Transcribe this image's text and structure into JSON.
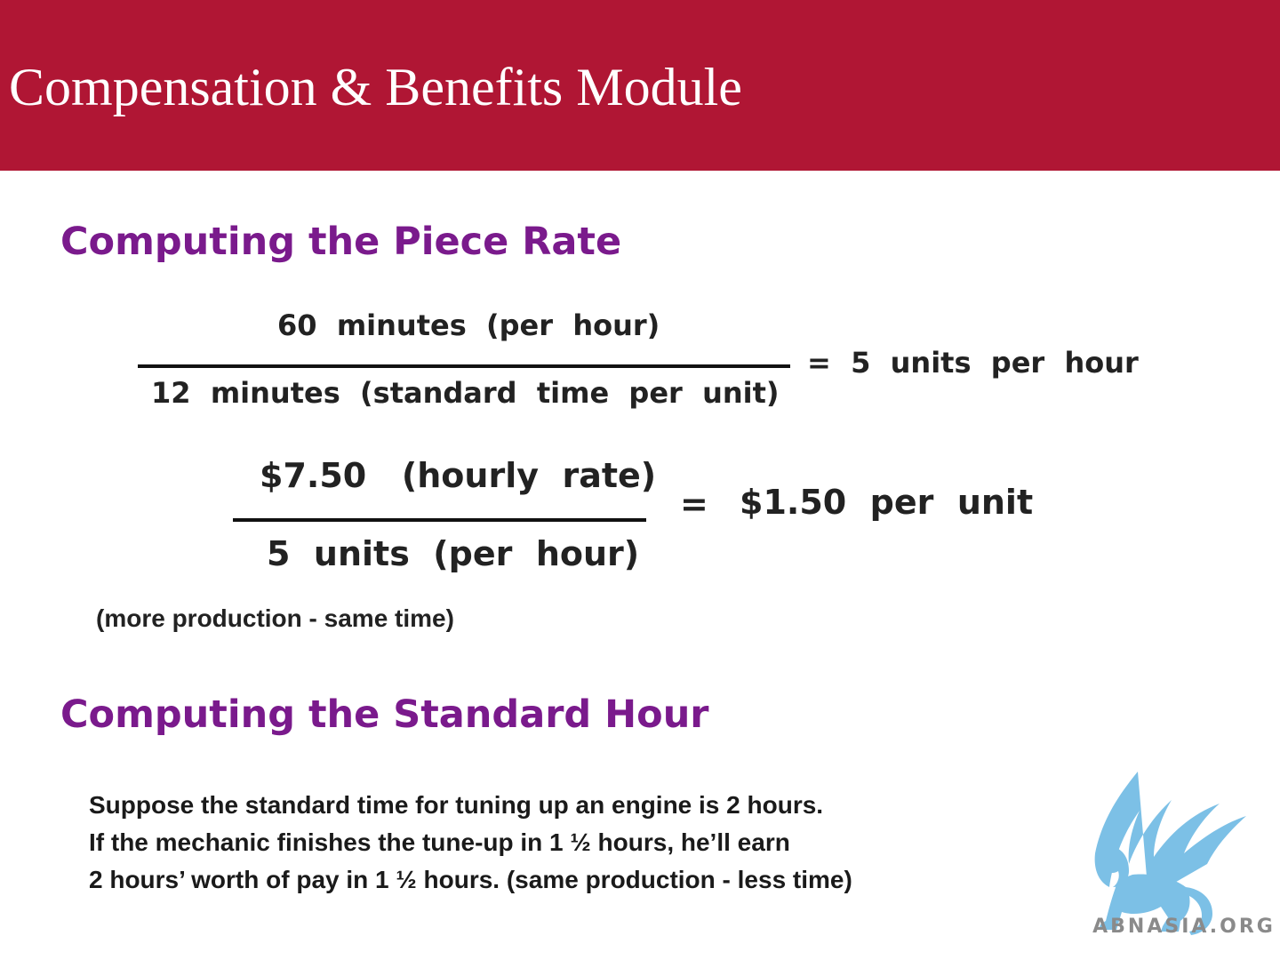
{
  "header": {
    "title": "Compensation & Benefits Module"
  },
  "piece_rate": {
    "heading": "Computing the Piece Rate",
    "equation1": {
      "numerator": "60  minutes  (per  hour)",
      "denominator": "12  minutes  (standard  time  per  unit)",
      "result": "=  5  units  per  hour"
    },
    "equation2": {
      "numerator": "$7.50   (hourly  rate)",
      "denominator": "5  units  (per  hour)",
      "equals": "=",
      "result": "$1.50  per  unit"
    },
    "note": "(more production - same time)"
  },
  "standard_hour": {
    "heading": "Computing the Standard Hour",
    "lines": [
      "Suppose the standard time for tuning up an engine is 2 hours.",
      "If the mechanic finishes the tune-up in 1 ½ hours, he’ll earn",
      "2 hours’ worth of pay in 1 ½ hours. (same production - less time)"
    ]
  },
  "logo": {
    "text": "ABNASIA.ORG",
    "color": "#7cc0e6"
  },
  "colors": {
    "header_bg": "#b01634",
    "heading": "#7a1a8c"
  }
}
